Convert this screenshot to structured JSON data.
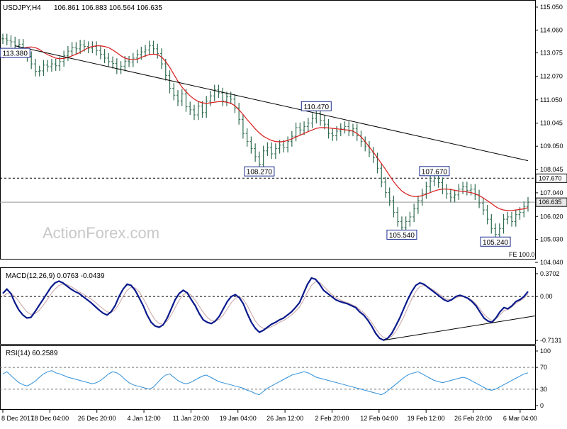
{
  "header": {
    "symbol": "USDJPY,H4",
    "ohlc": "106.861 106.883 106.564 106.635"
  },
  "watermark": "ActionForex.com",
  "colors": {
    "bars": "#2e6b4e",
    "ma": "#d81b1b",
    "macd": "#0a1a8c",
    "macd_signal": "#c9a3a3",
    "rsi": "#2f8fd8",
    "trend": "#000000",
    "label_border": "#1a2a8c"
  },
  "chart_data": [
    {
      "type": "line",
      "name": "price",
      "ylim": [
        104.04,
        115.05
      ],
      "y_ticks": [
        "115.050",
        "114.060",
        "113.075",
        "112.070",
        "111.050",
        "110.045",
        "109.050",
        "108.045",
        "107.040",
        "106.020",
        "105.030",
        "104.040"
      ],
      "price_tags": [
        {
          "text": "107.670",
          "value": 107.67
        },
        {
          "text": "106.635",
          "value": 106.635
        }
      ],
      "fe_label": "FE 100.0",
      "close": [
        113.68,
        113.62,
        113.55,
        113.38,
        113.45,
        113.1,
        112.92,
        112.6,
        112.28,
        112.3,
        112.55,
        112.48,
        112.6,
        112.52,
        112.7,
        112.95,
        113.15,
        113.32,
        113.25,
        113.42,
        113.35,
        113.28,
        113.35,
        113.18,
        113.02,
        112.85,
        112.7,
        112.62,
        112.38,
        112.5,
        112.72,
        112.68,
        112.85,
        113.0,
        113.12,
        113.2,
        113.38,
        113.25,
        113.05,
        112.6,
        112.1,
        111.55,
        111.25,
        111.0,
        111.3,
        110.75,
        110.62,
        110.4,
        110.78,
        110.5,
        111.0,
        111.22,
        111.48,
        111.35,
        111.0,
        111.18,
        111.08,
        110.7,
        110.2,
        109.6,
        109.25,
        108.95,
        108.6,
        108.27,
        108.85,
        109.0,
        108.72,
        108.95,
        109.1,
        109.0,
        109.25,
        109.48,
        109.85,
        109.75,
        109.9,
        110.05,
        110.25,
        110.47,
        110.15,
        110.0,
        109.6,
        109.5,
        109.7,
        109.82,
        109.9,
        109.7,
        109.8,
        109.5,
        109.25,
        109.05,
        108.8,
        108.55,
        108.1,
        107.5,
        107.05,
        106.7,
        106.2,
        105.8,
        105.54,
        105.8,
        106.0,
        106.35,
        106.7,
        107.0,
        107.3,
        107.55,
        107.67,
        107.48,
        107.2,
        107.0,
        106.85,
        106.95,
        107.2,
        107.3,
        107.15,
        107.2,
        106.95,
        106.6,
        106.3,
        105.9,
        105.5,
        105.24,
        105.5,
        105.9,
        106.0,
        105.8,
        106.1,
        106.2,
        106.45,
        106.635
      ],
      "ma": [
        112.85,
        112.95,
        113.05,
        113.15,
        113.22,
        113.28,
        113.32,
        113.33,
        113.3,
        113.22,
        113.1,
        113.0,
        112.92,
        112.85,
        112.82,
        112.84,
        112.88,
        112.95,
        113.02,
        113.1,
        113.2,
        113.3,
        113.35,
        113.38,
        113.38,
        113.35,
        113.3,
        113.2,
        113.08,
        112.95,
        112.85,
        112.8,
        112.78,
        112.8,
        112.88,
        112.95,
        113.0,
        113.02,
        113.0,
        112.9,
        112.7,
        112.45,
        112.15,
        111.85,
        111.6,
        111.4,
        111.22,
        111.08,
        110.98,
        110.92,
        110.9,
        110.92,
        110.95,
        110.97,
        110.97,
        110.95,
        110.9,
        110.8,
        110.62,
        110.42,
        110.2,
        110.0,
        109.8,
        109.62,
        109.48,
        109.38,
        109.3,
        109.25,
        109.24,
        109.25,
        109.3,
        109.37,
        109.45,
        109.52,
        109.6,
        109.68,
        109.75,
        109.82,
        109.85,
        109.85,
        109.84,
        109.82,
        109.8,
        109.78,
        109.76,
        109.74,
        109.7,
        109.6,
        109.45,
        109.25,
        109.02,
        108.8,
        108.55,
        108.3,
        108.05,
        107.78,
        107.52,
        107.3,
        107.12,
        107.0,
        106.92,
        106.88,
        106.88,
        106.92,
        106.98,
        107.05,
        107.12,
        107.17,
        107.2,
        107.2,
        107.18,
        107.15,
        107.12,
        107.1,
        107.08,
        107.05,
        107.0,
        106.92,
        106.82,
        106.7,
        106.58,
        106.45,
        106.35,
        106.3,
        106.28,
        106.28,
        106.3,
        106.32,
        106.35,
        106.4
      ],
      "annotations": [
        {
          "text": "113.380",
          "value": 113.38
        },
        {
          "text": "110.470",
          "value": 110.47
        },
        {
          "text": "108.270",
          "value": 108.27
        },
        {
          "text": "107.670",
          "value": 107.67
        },
        {
          "text": "105.540",
          "value": 105.54
        },
        {
          "text": "105.240",
          "value": 105.24
        }
      ],
      "horizontal_levels": [
        107.67,
        106.635
      ]
    },
    {
      "type": "line",
      "name": "MACD",
      "title": "MACD(12,26,9) 0.0763 -0.0439",
      "ylim": [
        -0.7131,
        0.3702
      ],
      "y_ticks": [
        "0.3702",
        "0.00",
        "-0.7131"
      ],
      "zero_line": 0.0,
      "values": [
        0.05,
        0.12,
        0.05,
        -0.1,
        -0.22,
        -0.3,
        -0.35,
        -0.34,
        -0.25,
        -0.15,
        -0.05,
        0.05,
        0.15,
        0.22,
        0.25,
        0.22,
        0.17,
        0.12,
        0.08,
        0.05,
        0.0,
        -0.05,
        -0.1,
        -0.16,
        -0.22,
        -0.27,
        -0.3,
        -0.25,
        -0.15,
        0.0,
        0.12,
        0.2,
        0.18,
        0.1,
        -0.02,
        -0.15,
        -0.3,
        -0.42,
        -0.48,
        -0.5,
        -0.46,
        -0.35,
        -0.2,
        -0.05,
        0.05,
        0.1,
        0.06,
        -0.05,
        -0.15,
        -0.28,
        -0.38,
        -0.42,
        -0.44,
        -0.4,
        -0.32,
        -0.2,
        -0.08,
        0.0,
        0.03,
        -0.02,
        -0.12,
        -0.28,
        -0.42,
        -0.52,
        -0.58,
        -0.55,
        -0.5,
        -0.45,
        -0.42,
        -0.38,
        -0.35,
        -0.3,
        -0.25,
        -0.18,
        -0.1,
        0.05,
        0.2,
        0.3,
        0.28,
        0.2,
        0.1,
        0.05,
        0.0,
        -0.05,
        -0.08,
        -0.1,
        -0.12,
        -0.15,
        -0.18,
        -0.25,
        -0.3,
        -0.38,
        -0.48,
        -0.6,
        -0.68,
        -0.71,
        -0.68,
        -0.6,
        -0.48,
        -0.35,
        -0.2,
        -0.05,
        0.08,
        0.18,
        0.22,
        0.2,
        0.15,
        0.1,
        0.05,
        0.0,
        -0.05,
        -0.08,
        -0.05,
        0.0,
        0.02,
        0.0,
        -0.03,
        -0.08,
        -0.15,
        -0.25,
        -0.35,
        -0.4,
        -0.42,
        -0.35,
        -0.25,
        -0.18,
        -0.2,
        -0.15,
        -0.08,
        -0.05,
        0.0,
        0.08
      ],
      "signal": [
        0.0,
        0.05,
        0.06,
        0.0,
        -0.08,
        -0.17,
        -0.25,
        -0.29,
        -0.28,
        -0.23,
        -0.15,
        -0.06,
        0.04,
        0.12,
        0.18,
        0.2,
        0.19,
        0.16,
        0.12,
        0.08,
        0.04,
        0.0,
        -0.04,
        -0.09,
        -0.15,
        -0.2,
        -0.25,
        -0.26,
        -0.22,
        -0.12,
        0.0,
        0.1,
        0.15,
        0.14,
        0.08,
        -0.03,
        -0.15,
        -0.28,
        -0.38,
        -0.44,
        -0.45,
        -0.4,
        -0.3,
        -0.18,
        -0.06,
        0.03,
        0.06,
        0.02,
        -0.06,
        -0.16,
        -0.26,
        -0.34,
        -0.39,
        -0.4,
        -0.37,
        -0.3,
        -0.2,
        -0.1,
        -0.03,
        0.0,
        -0.05,
        -0.15,
        -0.28,
        -0.4,
        -0.48,
        -0.52,
        -0.52,
        -0.49,
        -0.46,
        -0.42,
        -0.39,
        -0.35,
        -0.3,
        -0.24,
        -0.17,
        -0.06,
        0.07,
        0.18,
        0.24,
        0.23,
        0.17,
        0.1,
        0.04,
        -0.01,
        -0.05,
        -0.08,
        -0.1,
        -0.13,
        -0.16,
        -0.21,
        -0.26,
        -0.33,
        -0.42,
        -0.52,
        -0.61,
        -0.67,
        -0.68,
        -0.65,
        -0.57,
        -0.46,
        -0.33,
        -0.18,
        -0.04,
        0.08,
        0.16,
        0.18,
        0.16,
        0.12,
        0.08,
        0.03,
        -0.02,
        -0.05,
        -0.05,
        -0.02,
        0.0,
        0.0,
        -0.02,
        -0.06,
        -0.12,
        -0.2,
        -0.29,
        -0.35,
        -0.39,
        -0.36,
        -0.3,
        -0.23,
        -0.21,
        -0.17,
        -0.11,
        -0.07,
        -0.03,
        0.04
      ]
    },
    {
      "type": "line",
      "name": "RSI",
      "title": "RSI(14) 60.2589",
      "ylim": [
        0,
        100
      ],
      "y_ticks": [
        "100",
        "70",
        "30",
        "0"
      ],
      "levels": [
        70,
        30
      ],
      "values": [
        58,
        62,
        55,
        48,
        42,
        38,
        36,
        40,
        45,
        52,
        58,
        62,
        64,
        60,
        58,
        55,
        52,
        50,
        48,
        46,
        44,
        42,
        40,
        42,
        46,
        52,
        58,
        62,
        60,
        55,
        48,
        42,
        38,
        36,
        34,
        32,
        30,
        34,
        42,
        50,
        56,
        58,
        52,
        46,
        42,
        40,
        42,
        46,
        50,
        54,
        56,
        52,
        48,
        44,
        42,
        40,
        38,
        36,
        34,
        32,
        28,
        26,
        22,
        20,
        26,
        32,
        36,
        40,
        44,
        48,
        52,
        56,
        58,
        60,
        62,
        60,
        56,
        52,
        50,
        48,
        46,
        44,
        42,
        40,
        38,
        36,
        34,
        32,
        30,
        28,
        26,
        24,
        22,
        20,
        24,
        30,
        36,
        42,
        48,
        54,
        58,
        60,
        62,
        58,
        54,
        50,
        46,
        44,
        42,
        44,
        46,
        48,
        50,
        52,
        50,
        46,
        42,
        38,
        34,
        30,
        28,
        30,
        34,
        38,
        42,
        46,
        50,
        54,
        58,
        60
      ]
    }
  ],
  "x_ticks": [
    "8 Dec 2017",
    "18 Dec 04:00",
    "26 Dec 20:00",
    "4 Jan 12:00",
    "11 Jan 20:00",
    "19 Jan 04:00",
    "26 Jan 12:00",
    "2 Feb 20:00",
    "12 Feb 04:00",
    "19 Feb 12:00",
    "26 Feb 20:00",
    "6 Mar 04:00"
  ]
}
